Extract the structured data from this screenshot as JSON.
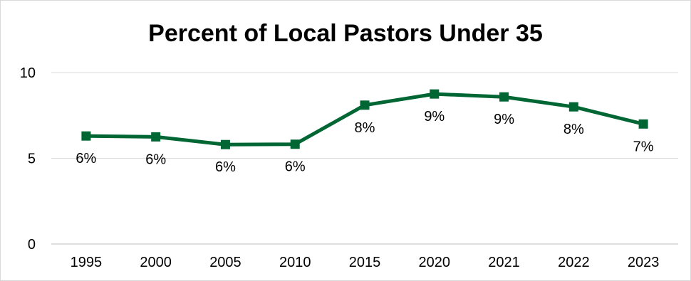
{
  "chart_data": {
    "type": "line",
    "title": "Percent of Local Pastors Under 35",
    "categories": [
      "1995",
      "2000",
      "2005",
      "2010",
      "2015",
      "2020",
      "2021",
      "2022",
      "2023"
    ],
    "series": [
      {
        "values": [
          6.3,
          6.25,
          5.8,
          5.82,
          8.1,
          8.75,
          8.58,
          8.0,
          7.0
        ],
        "data_labels": [
          "6%",
          "6%",
          "6%",
          "6%",
          "8%",
          "9%",
          "9%",
          "8%",
          "7%"
        ]
      }
    ],
    "ylim": [
      0,
      10
    ],
    "yticks": [
      "0",
      "5",
      "10"
    ],
    "grid": true,
    "line_color": "#006633",
    "marker": "square"
  }
}
